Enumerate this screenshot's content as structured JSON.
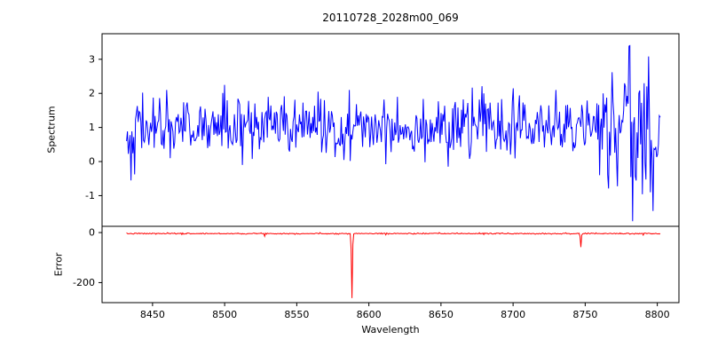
{
  "chart_data": {
    "type": "line",
    "title": "20110728_2028m00_069",
    "xlabel": "Wavelength",
    "xlim": [
      8415,
      8815
    ],
    "xticks": [
      8450,
      8500,
      8550,
      8600,
      8650,
      8700,
      8750,
      8800
    ],
    "grid": false,
    "legend": "none",
    "panels": [
      {
        "ylabel": "Spectrum",
        "color": "#0000ff",
        "ylim": [
          -1.9,
          3.75
        ],
        "yticks": [
          3,
          2,
          1,
          0,
          -1
        ],
        "series": {
          "name": "spectrum",
          "x_start": 8432,
          "x_end": 8802,
          "n": 600,
          "baseline": 1.0,
          "noise_std": 0.42,
          "high_noise_region": {
            "from": 8762,
            "to": 8800,
            "std": 1.05
          },
          "overrides": [
            [
              8435,
              -0.55
            ],
            [
              8460,
              2.1
            ],
            [
              8500,
              2.25
            ],
            [
              8512,
              -0.1
            ],
            [
              8530,
              1.9
            ],
            [
              8565,
              2.05
            ],
            [
              8620,
              1.9
            ],
            [
              8655,
              -0.15
            ],
            [
              8680,
              2.0
            ],
            [
              8700,
              2.15
            ],
            [
              8730,
              2.1
            ],
            [
              8760,
              -0.4
            ],
            [
              8778,
              2.2
            ],
            [
              8781,
              3.4
            ],
            [
              8783,
              -1.75
            ],
            [
              8787,
              2.0
            ],
            [
              8791,
              2.3
            ],
            [
              8795,
              -0.9
            ],
            [
              8797,
              -1.45
            ],
            [
              8800,
              0.2
            ],
            [
              8802,
              1.3
            ]
          ],
          "seed": 42
        }
      },
      {
        "ylabel": "Error",
        "color": "#ff0000",
        "ylim": [
          -280,
          25
        ],
        "yticks": [
          0,
          -200
        ],
        "series": {
          "name": "error",
          "x_start": 8432,
          "x_end": 8802,
          "n": 600,
          "baseline": -4,
          "noise_std": 1.2,
          "spikes": [
            [
              8470,
              -8
            ],
            [
              8528,
              -15
            ],
            [
              8588,
              -262
            ],
            [
              8612,
              -9
            ],
            [
              8680,
              -8
            ],
            [
              8747,
              -58
            ],
            [
              8790,
              -10
            ]
          ],
          "seed": 7
        }
      }
    ]
  }
}
